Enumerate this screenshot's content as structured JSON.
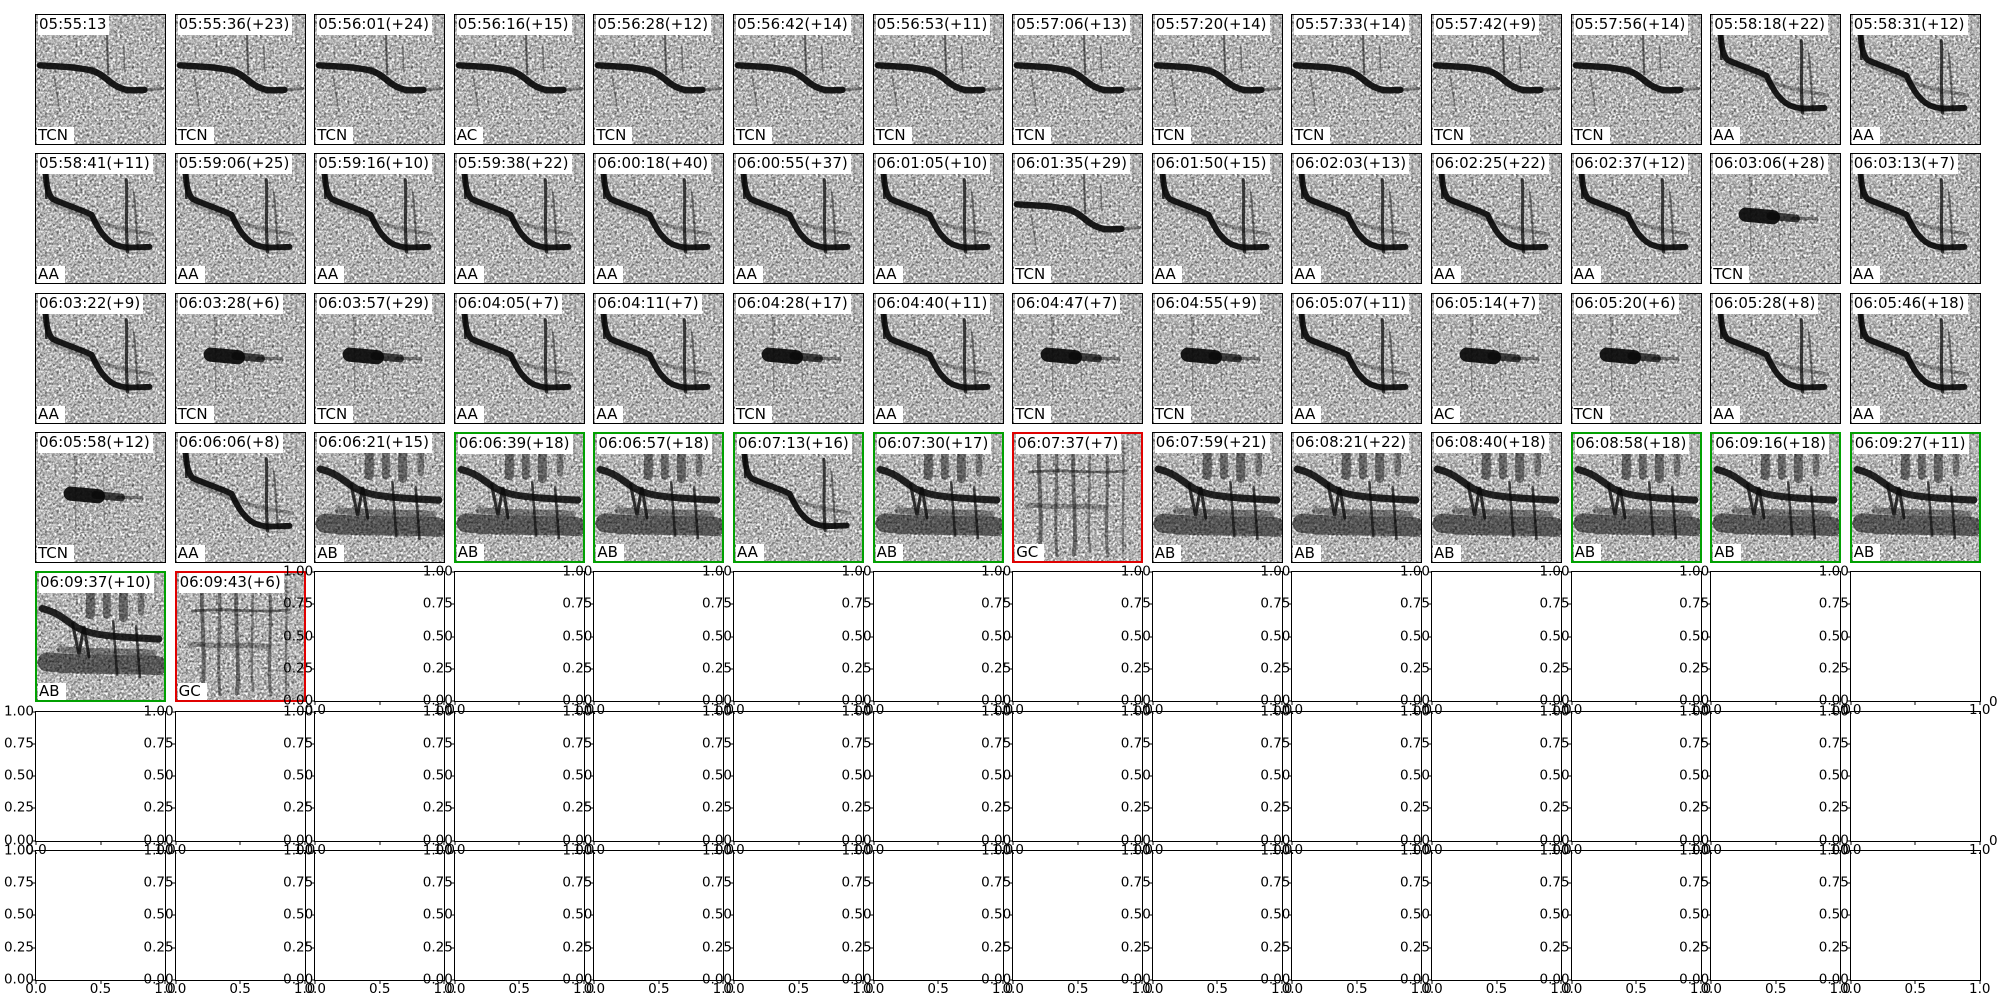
{
  "chart_data": {
    "type": "heatmap",
    "grid": {
      "rows": 7,
      "cols": 14,
      "spectrogram_cells": 58,
      "empty_axes_cells": 40
    },
    "cells": [
      {
        "title": "05:55:13",
        "label": "TCN",
        "pattern": "whistle-flat",
        "highlight": "none"
      },
      {
        "title": "05:55:36(+23)",
        "label": "TCN",
        "pattern": "whistle-flat",
        "highlight": "none"
      },
      {
        "title": "05:56:01(+24)",
        "label": "TCN",
        "pattern": "whistle-flat",
        "highlight": "none"
      },
      {
        "title": "05:56:16(+15)",
        "label": "AC",
        "pattern": "whistle-flat",
        "highlight": "none"
      },
      {
        "title": "05:56:28(+12)",
        "label": "TCN",
        "pattern": "whistle-flat",
        "highlight": "none"
      },
      {
        "title": "05:56:42(+14)",
        "label": "TCN",
        "pattern": "whistle-flat",
        "highlight": "none"
      },
      {
        "title": "05:56:53(+11)",
        "label": "TCN",
        "pattern": "whistle-flat",
        "highlight": "none"
      },
      {
        "title": "05:57:06(+13)",
        "label": "TCN",
        "pattern": "whistle-flat",
        "highlight": "none"
      },
      {
        "title": "05:57:20(+14)",
        "label": "TCN",
        "pattern": "whistle-flat",
        "highlight": "none"
      },
      {
        "title": "05:57:33(+14)",
        "label": "TCN",
        "pattern": "whistle-flat",
        "highlight": "none"
      },
      {
        "title": "05:57:42(+9)",
        "label": "TCN",
        "pattern": "whistle-flat",
        "highlight": "none"
      },
      {
        "title": "05:57:56(+14)",
        "label": "TCN",
        "pattern": "whistle-flat",
        "highlight": "none"
      },
      {
        "title": "05:58:18(+22)",
        "label": "AA",
        "pattern": "whistle-descend",
        "highlight": "none"
      },
      {
        "title": "05:58:31(+12)",
        "label": "AA",
        "pattern": "whistle-descend",
        "highlight": "none"
      },
      {
        "title": "05:58:41(+11)",
        "label": "AA",
        "pattern": "whistle-descend",
        "highlight": "none"
      },
      {
        "title": "05:59:06(+25)",
        "label": "AA",
        "pattern": "whistle-descend",
        "highlight": "none"
      },
      {
        "title": "05:59:16(+10)",
        "label": "AA",
        "pattern": "whistle-descend",
        "highlight": "none"
      },
      {
        "title": "05:59:38(+22)",
        "label": "AA",
        "pattern": "whistle-descend",
        "highlight": "none"
      },
      {
        "title": "06:00:18(+40)",
        "label": "AA",
        "pattern": "whistle-descend",
        "highlight": "none"
      },
      {
        "title": "06:00:55(+37)",
        "label": "AA",
        "pattern": "whistle-descend",
        "highlight": "none"
      },
      {
        "title": "06:01:05(+10)",
        "label": "AA",
        "pattern": "whistle-descend",
        "highlight": "none"
      },
      {
        "title": "06:01:35(+29)",
        "label": "TCN",
        "pattern": "whistle-flat",
        "highlight": "none"
      },
      {
        "title": "06:01:50(+15)",
        "label": "AA",
        "pattern": "whistle-descend",
        "highlight": "none"
      },
      {
        "title": "06:02:03(+13)",
        "label": "AA",
        "pattern": "whistle-descend",
        "highlight": "none"
      },
      {
        "title": "06:02:25(+22)",
        "label": "AA",
        "pattern": "whistle-descend",
        "highlight": "none"
      },
      {
        "title": "06:02:37(+12)",
        "label": "AA",
        "pattern": "whistle-descend",
        "highlight": "none"
      },
      {
        "title": "06:03:06(+28)",
        "label": "TCN",
        "pattern": "burst",
        "highlight": "none"
      },
      {
        "title": "06:03:13(+7)",
        "label": "AA",
        "pattern": "whistle-descend",
        "highlight": "none"
      },
      {
        "title": "06:03:22(+9)",
        "label": "AA",
        "pattern": "whistle-descend",
        "highlight": "none"
      },
      {
        "title": "06:03:28(+6)",
        "label": "TCN",
        "pattern": "burst",
        "highlight": "none"
      },
      {
        "title": "06:03:57(+29)",
        "label": "TCN",
        "pattern": "burst",
        "highlight": "none"
      },
      {
        "title": "06:04:05(+7)",
        "label": "AA",
        "pattern": "whistle-descend",
        "highlight": "none"
      },
      {
        "title": "06:04:11(+7)",
        "label": "AA",
        "pattern": "whistle-descend",
        "highlight": "none"
      },
      {
        "title": "06:04:28(+17)",
        "label": "TCN",
        "pattern": "burst",
        "highlight": "none"
      },
      {
        "title": "06:04:40(+11)",
        "label": "AA",
        "pattern": "whistle-descend",
        "highlight": "none"
      },
      {
        "title": "06:04:47(+7)",
        "label": "TCN",
        "pattern": "burst",
        "highlight": "none"
      },
      {
        "title": "06:04:55(+9)",
        "label": "TCN",
        "pattern": "burst",
        "highlight": "none"
      },
      {
        "title": "06:05:07(+11)",
        "label": "AA",
        "pattern": "whistle-descend",
        "highlight": "none"
      },
      {
        "title": "06:05:14(+7)",
        "label": "AC",
        "pattern": "burst",
        "highlight": "none"
      },
      {
        "title": "06:05:20(+6)",
        "label": "TCN",
        "pattern": "burst",
        "highlight": "none"
      },
      {
        "title": "06:05:28(+8)",
        "label": "AA",
        "pattern": "whistle-descend",
        "highlight": "none"
      },
      {
        "title": "06:05:46(+18)",
        "label": "AA",
        "pattern": "whistle-descend",
        "highlight": "none"
      },
      {
        "title": "06:05:58(+12)",
        "label": "TCN",
        "pattern": "burst",
        "highlight": "none"
      },
      {
        "title": "06:06:06(+8)",
        "label": "AA",
        "pattern": "whistle-descend",
        "highlight": "none"
      },
      {
        "title": "06:06:21(+15)",
        "label": "AB",
        "pattern": "block",
        "highlight": "none"
      },
      {
        "title": "06:06:39(+18)",
        "label": "AB",
        "pattern": "block",
        "highlight": "green"
      },
      {
        "title": "06:06:57(+18)",
        "label": "AB",
        "pattern": "block",
        "highlight": "green"
      },
      {
        "title": "06:07:13(+16)",
        "label": "AA",
        "pattern": "whistle-descend",
        "highlight": "green"
      },
      {
        "title": "06:07:30(+17)",
        "label": "AB",
        "pattern": "block",
        "highlight": "green"
      },
      {
        "title": "06:07:37(+7)",
        "label": "GC",
        "pattern": "vertical-noise",
        "highlight": "red"
      },
      {
        "title": "06:07:59(+21)",
        "label": "AB",
        "pattern": "block",
        "highlight": "none"
      },
      {
        "title": "06:08:21(+22)",
        "label": "AB",
        "pattern": "block",
        "highlight": "none"
      },
      {
        "title": "06:08:40(+18)",
        "label": "AB",
        "pattern": "block",
        "highlight": "none"
      },
      {
        "title": "06:08:58(+18)",
        "label": "AB",
        "pattern": "block",
        "highlight": "green"
      },
      {
        "title": "06:09:16(+18)",
        "label": "AB",
        "pattern": "block",
        "highlight": "green"
      },
      {
        "title": "06:09:27(+11)",
        "label": "AB",
        "pattern": "block",
        "highlight": "green"
      },
      {
        "title": "06:09:37(+10)",
        "label": "AB",
        "pattern": "block",
        "highlight": "green"
      },
      {
        "title": "06:09:43(+6)",
        "label": "GC",
        "pattern": "vertical-noise",
        "highlight": "red"
      }
    ],
    "empty_axes": {
      "y_ticks": [
        "1.00",
        "0.75",
        "0.50",
        "0.25",
        "0.00"
      ],
      "x_ticks": [
        "0.0",
        "0.5",
        "1.0"
      ],
      "xlim": [
        0.0,
        1.0
      ],
      "ylim": [
        0.0,
        1.0
      ]
    },
    "clipped_edge_labels": [
      "0",
      "0"
    ]
  },
  "colors": {
    "background": "#ffffff",
    "axes_border": "#000000",
    "highlight_green": "#00a000",
    "highlight_red": "#e00000",
    "text": "#000000"
  }
}
